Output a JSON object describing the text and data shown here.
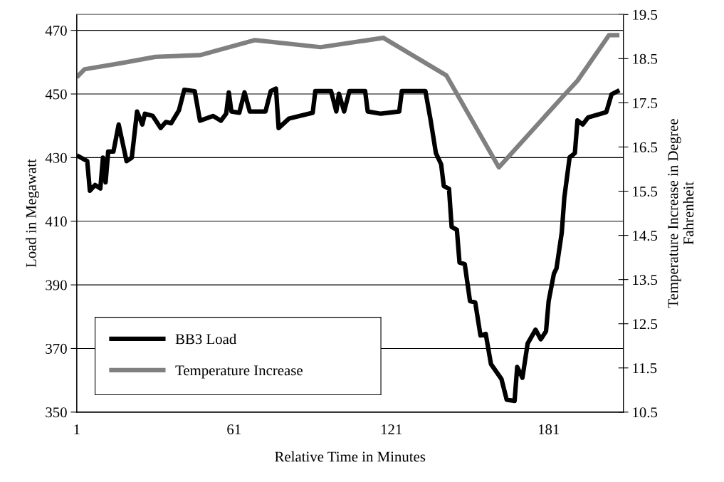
{
  "chart_data": {
    "type": "line",
    "xlabel": "Relative Time in Minutes",
    "ylabel": "Load in Megawatt",
    "y2label": "Temperature Increase in Degree Fahrenheit",
    "xlim": [
      1,
      209.5
    ],
    "xticks": [
      1,
      61,
      121,
      181
    ],
    "ylim": [
      350,
      475
    ],
    "yticks": [
      350,
      370,
      390,
      410,
      430,
      450,
      470
    ],
    "y2lim": [
      10.5,
      19.5
    ],
    "y2ticks": [
      10.5,
      11.5,
      12.5,
      13.5,
      14.5,
      15.5,
      16.5,
      17.5,
      18.5,
      19.5
    ],
    "grid": "y",
    "legend": "bottom left",
    "marker": "none",
    "line_style": "solid",
    "series": [
      {
        "name": "BB3 Load",
        "color": "#000000",
        "x": [
          1,
          5,
          6,
          8,
          10,
          11,
          12,
          13,
          15,
          17,
          20,
          22,
          24,
          26,
          27,
          30,
          33,
          35,
          37,
          40,
          42,
          46,
          48,
          53,
          56,
          58,
          59,
          60,
          63,
          65,
          67,
          73,
          75,
          77,
          78,
          82,
          91,
          92,
          98,
          100,
          101,
          103,
          105,
          111,
          112,
          117,
          124,
          125,
          134,
          136,
          138,
          140,
          141,
          143,
          144,
          146,
          147,
          149,
          151,
          153,
          155,
          157,
          159,
          163,
          165,
          168,
          169,
          171,
          173,
          176,
          178,
          180,
          181,
          183,
          184,
          186,
          187,
          189,
          191,
          192,
          194,
          196,
          203,
          205,
          208
        ],
        "values": [
          430.7,
          428.9,
          419.6,
          421.4,
          420.3,
          430.0,
          422.2,
          431.9,
          431.9,
          440.4,
          428.9,
          430.0,
          444.5,
          440.4,
          443.8,
          443.1,
          439.3,
          441.2,
          440.8,
          444.9,
          451.3,
          450.9,
          441.6,
          443.1,
          441.6,
          443.8,
          450.5,
          444.5,
          444.1,
          450.5,
          444.5,
          444.5,
          450.9,
          451.7,
          439.3,
          442.3,
          444.1,
          450.9,
          450.9,
          444.5,
          450.1,
          444.5,
          450.9,
          450.9,
          444.5,
          443.8,
          444.5,
          450.9,
          450.9,
          441.7,
          431.4,
          427.9,
          421.1,
          420.2,
          408.2,
          407.3,
          397.0,
          396.5,
          384.9,
          384.5,
          374.1,
          374.6,
          365.1,
          360.4,
          353.9,
          353.5,
          364.2,
          360.8,
          371.6,
          375.9,
          372.9,
          375.4,
          384.9,
          393.5,
          395.2,
          406.4,
          417.6,
          430.1,
          431.4,
          441.7,
          440.4,
          442.6,
          444.3,
          449.9,
          451.2
        ]
      },
      {
        "name": "Temperature Increase",
        "color": "#808080",
        "axis": "y2",
        "x": [
          1,
          4,
          18,
          31,
          48,
          69,
          94,
          118,
          142,
          162,
          187,
          192,
          204,
          208
        ],
        "values": [
          18.08,
          18.26,
          18.4,
          18.54,
          18.58,
          18.92,
          18.76,
          18.97,
          18.12,
          16.04,
          17.68,
          18.0,
          19.03,
          19.03
        ]
      }
    ]
  }
}
